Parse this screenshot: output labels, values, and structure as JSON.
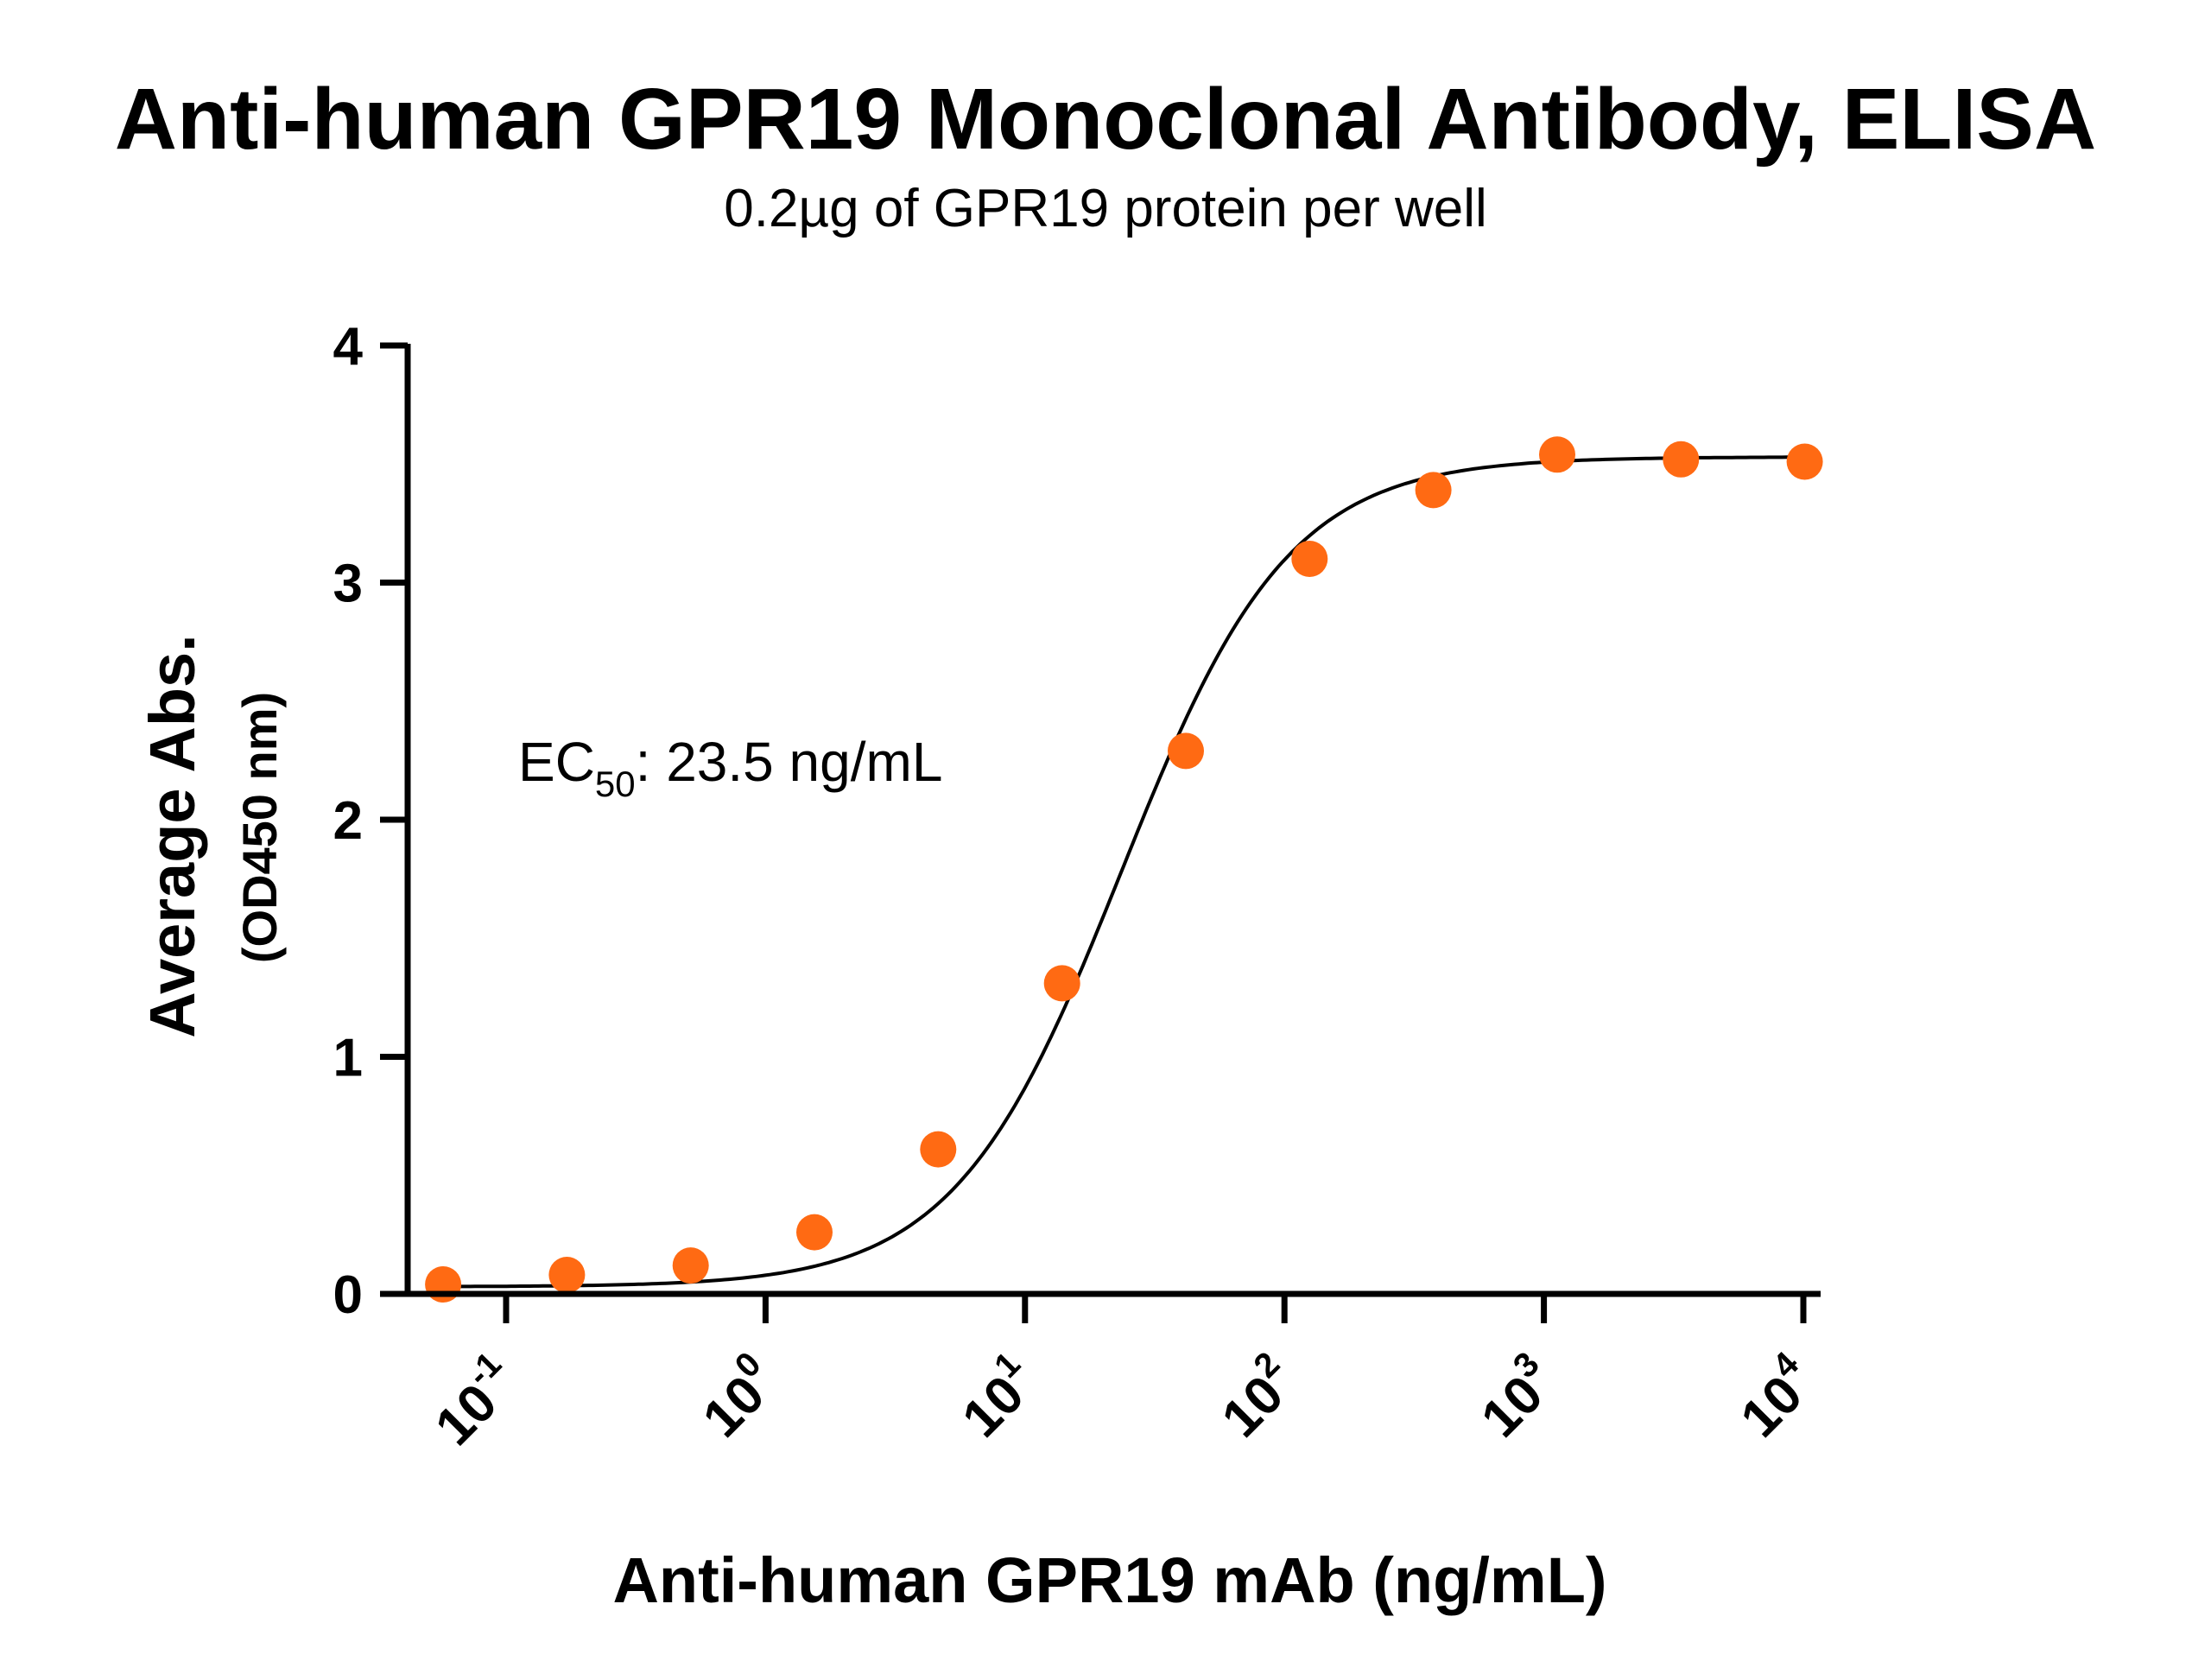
{
  "chart_data": {
    "type": "scatter",
    "title": "Anti-human GPR19 Monoclonal Antibody, ELISA",
    "subtitle": "0.2µg of GPR19 protein per well",
    "xlabel": "Anti-human GPR19 mAb (ng/mL)",
    "ylabel": "Average Abs.",
    "ylabel_sub": "(OD450 nm)",
    "x_scale": "log",
    "xlim": [
      0.05,
      10000
    ],
    "ylim": [
      0,
      4
    ],
    "x_ticks": [
      {
        "base": "10",
        "exp": "-1",
        "value": 0.1
      },
      {
        "base": "10",
        "exp": "0",
        "value": 1
      },
      {
        "base": "10",
        "exp": "1",
        "value": 10
      },
      {
        "base": "10",
        "exp": "2",
        "value": 100
      },
      {
        "base": "10",
        "exp": "3",
        "value": 1000
      },
      {
        "base": "10",
        "exp": "4",
        "value": 10000
      }
    ],
    "y_ticks": [
      "0",
      "1",
      "2",
      "3",
      "4"
    ],
    "grid": false,
    "legend": "none",
    "marker_color": "#FF6A13",
    "curve_color": "#000000",
    "annotation": {
      "prefix": "EC",
      "sub": "50",
      "suffix": ": 23.5 ng/mL",
      "ec50": 23.5
    },
    "fit": {
      "bottom": 0.03,
      "top": 3.53,
      "ec50": 23.5,
      "hill": 1.35
    },
    "series": [
      {
        "x": [
          0.0572,
          0.1715,
          0.5144,
          1.543,
          4.63,
          13.89,
          41.67,
          125.0,
          375.0,
          1125,
          3375,
          10125
        ],
        "y": [
          0.04,
          0.08,
          0.12,
          0.26,
          0.61,
          1.31,
          2.29,
          3.1,
          3.39,
          3.54,
          3.52,
          3.51
        ]
      }
    ]
  }
}
